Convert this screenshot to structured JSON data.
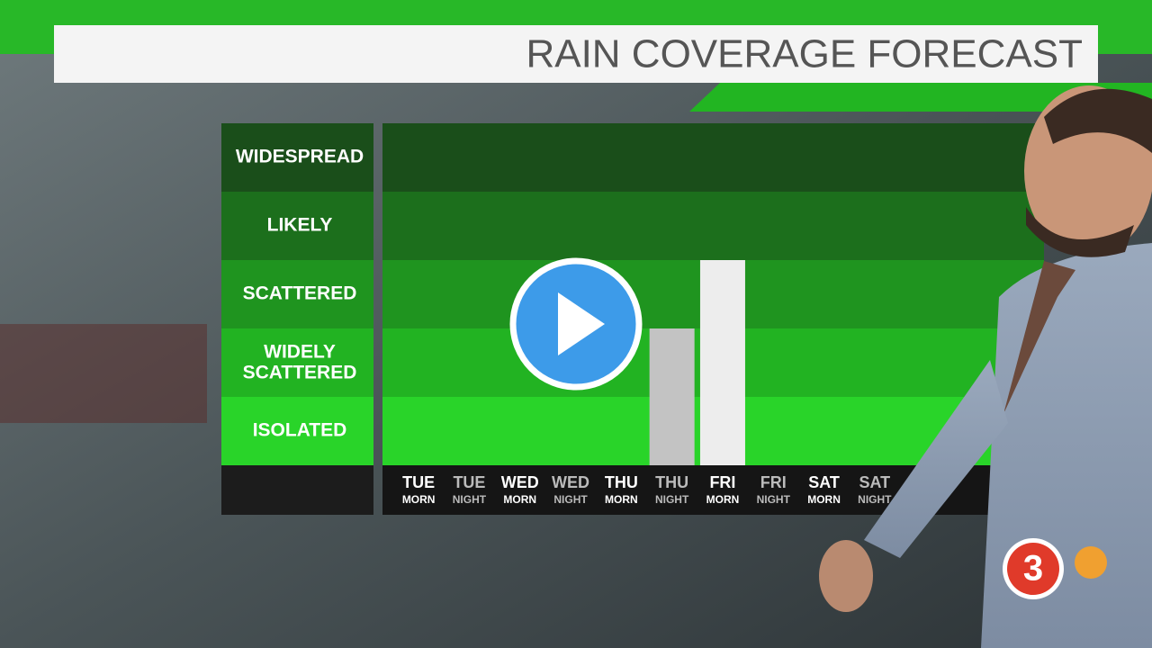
{
  "chart_data": {
    "type": "bar",
    "title": "RAIN COVERAGE FORECAST",
    "categories": [
      [
        "TUE",
        "MORN"
      ],
      [
        "TUE",
        "NIGHT"
      ],
      [
        "WED",
        "MORN"
      ],
      [
        "WED",
        "NIGHT"
      ],
      [
        "THU",
        "MORN"
      ],
      [
        "THU",
        "NIGHT"
      ],
      [
        "FRI",
        "MORN"
      ],
      [
        "FRI",
        "NIGHT"
      ],
      [
        "SAT",
        "MORN"
      ],
      [
        "SAT",
        "NIGHT"
      ]
    ],
    "values": [
      0,
      0,
      0,
      0,
      0,
      2,
      3,
      0,
      0,
      0
    ],
    "colors": [
      "#c3c3c3",
      "#c3c3c3",
      "#c3c3c3",
      "#c3c3c3",
      "#c3c3c3",
      "#c3c3c3",
      "#ededed",
      "#ededed",
      "#ededed",
      "#ededed"
    ],
    "ylim": [
      0,
      5
    ],
    "yticks": [
      {
        "value": 1,
        "label": "ISOLATED"
      },
      {
        "value": 2,
        "label": "WIDELY SCATTERED"
      },
      {
        "value": 3,
        "label": "SCATTERED"
      },
      {
        "value": 4,
        "label": "LIKELY"
      },
      {
        "value": 5,
        "label": "WIDESPREAD"
      }
    ],
    "logo": "3"
  }
}
